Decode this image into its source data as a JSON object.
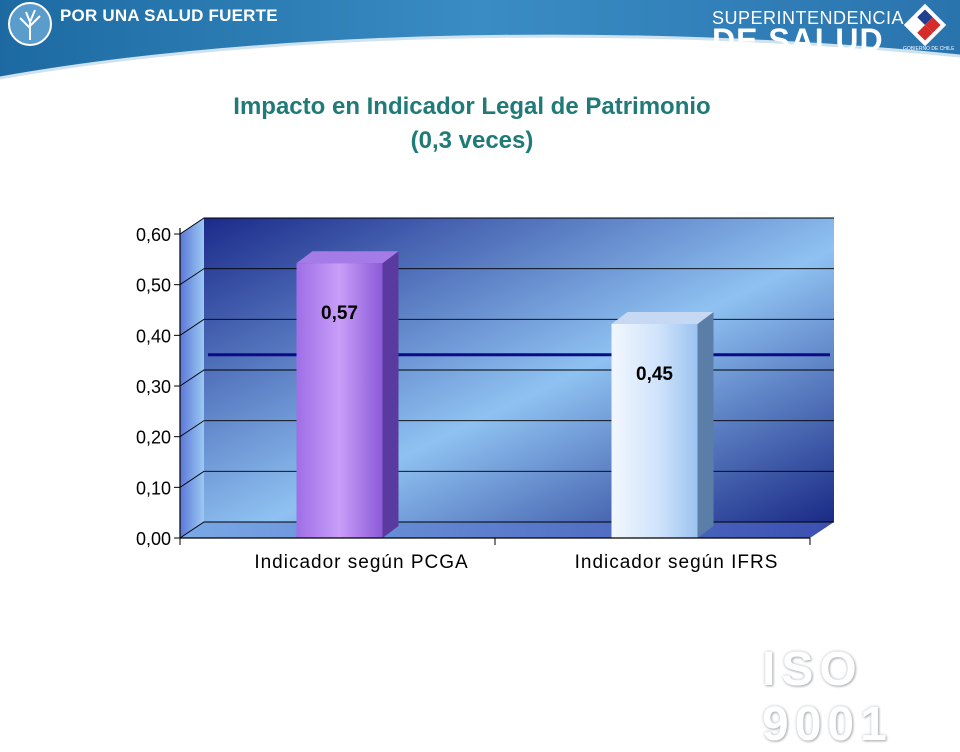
{
  "header": {
    "slogan": "POR UNA SALUD FUERTE",
    "org_line1": "SUPERINTENDENCIA",
    "org_line2": "DE SALUD",
    "gov_label": "GOBIERNO DE CHILE"
  },
  "watermark": {
    "text": "ISO 9001"
  },
  "colors": {
    "title": "#1f7a78",
    "header_band": "#2a6fa8",
    "bar1": "#b889f0",
    "bar2": "#cfe3fb",
    "reference_line": "#0b0b8a"
  },
  "chart_data": {
    "type": "bar",
    "title": "Impacto en Indicador Legal de Patrimonio",
    "subtitle": "(0,3 veces)",
    "categories": [
      "Indicador según PCGA",
      "Indicador según IFRS"
    ],
    "values": [
      0.57,
      0.45
    ],
    "data_labels": [
      "0,57",
      "0,45"
    ],
    "reference_line": 0.33,
    "ylim": [
      0,
      0.6
    ],
    "yticks": [
      0,
      0.1,
      0.2,
      0.3,
      0.4,
      0.5,
      0.6
    ],
    "ytick_labels": [
      "0,00",
      "0,10",
      "0,20",
      "0,30",
      "0,40",
      "0,50",
      "0,60"
    ],
    "xlabel": "",
    "ylabel": "",
    "grid": true,
    "legend": "none",
    "style": "3d"
  }
}
